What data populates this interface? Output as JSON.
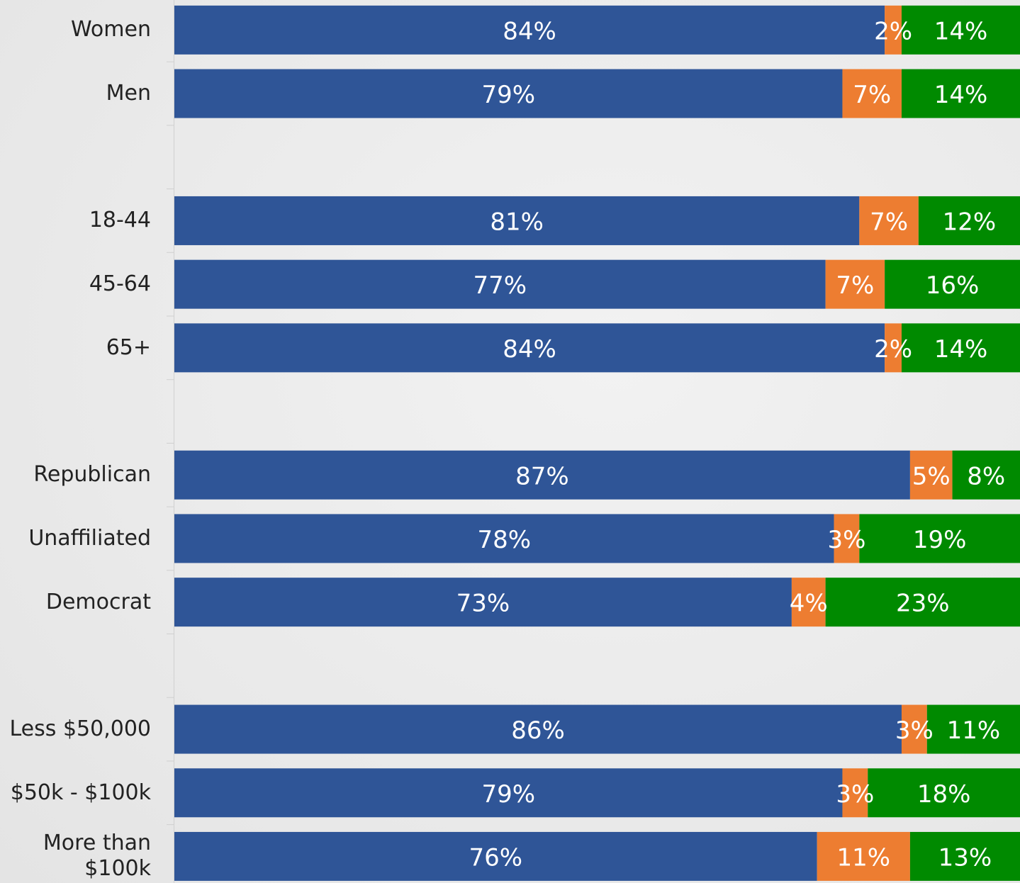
{
  "chart_data": {
    "type": "stacked_bar_horizontal",
    "categories": [
      "Women",
      "Men",
      null,
      "18-44",
      "45-64",
      "65+",
      null,
      "Republican",
      "Unaffiliated",
      "Democrat",
      null,
      "Less $50,000",
      "$50k - $100k",
      "More than $100k"
    ],
    "xlim": [
      0,
      100
    ],
    "series": [
      {
        "color": "#2f5597",
        "values": [
          84,
          79,
          null,
          81,
          77,
          84,
          null,
          87,
          78,
          73,
          null,
          86,
          79,
          76
        ],
        "value_labels": [
          "84%",
          "79%",
          null,
          "81%",
          "77%",
          "84%",
          null,
          "87%",
          "78%",
          "73%",
          null,
          "86%",
          "79%",
          "76%"
        ]
      },
      {
        "color": "#ed7d31",
        "values": [
          2,
          7,
          null,
          7,
          7,
          2,
          null,
          5,
          3,
          4,
          null,
          3,
          3,
          11
        ],
        "value_labels": [
          "2%",
          "7%",
          null,
          "7%",
          "7%",
          "2%",
          null,
          "5%",
          "3%",
          "4%",
          null,
          "3%",
          "3%",
          "11%"
        ]
      },
      {
        "color": "#008a00",
        "values": [
          14,
          14,
          null,
          12,
          16,
          14,
          null,
          8,
          19,
          23,
          null,
          11,
          18,
          13
        ],
        "value_labels": [
          "14%",
          "14%",
          null,
          "12%",
          "16%",
          "14%",
          null,
          "8%",
          "19%",
          "23%",
          null,
          "11%",
          "18%",
          "13%"
        ]
      }
    ]
  }
}
